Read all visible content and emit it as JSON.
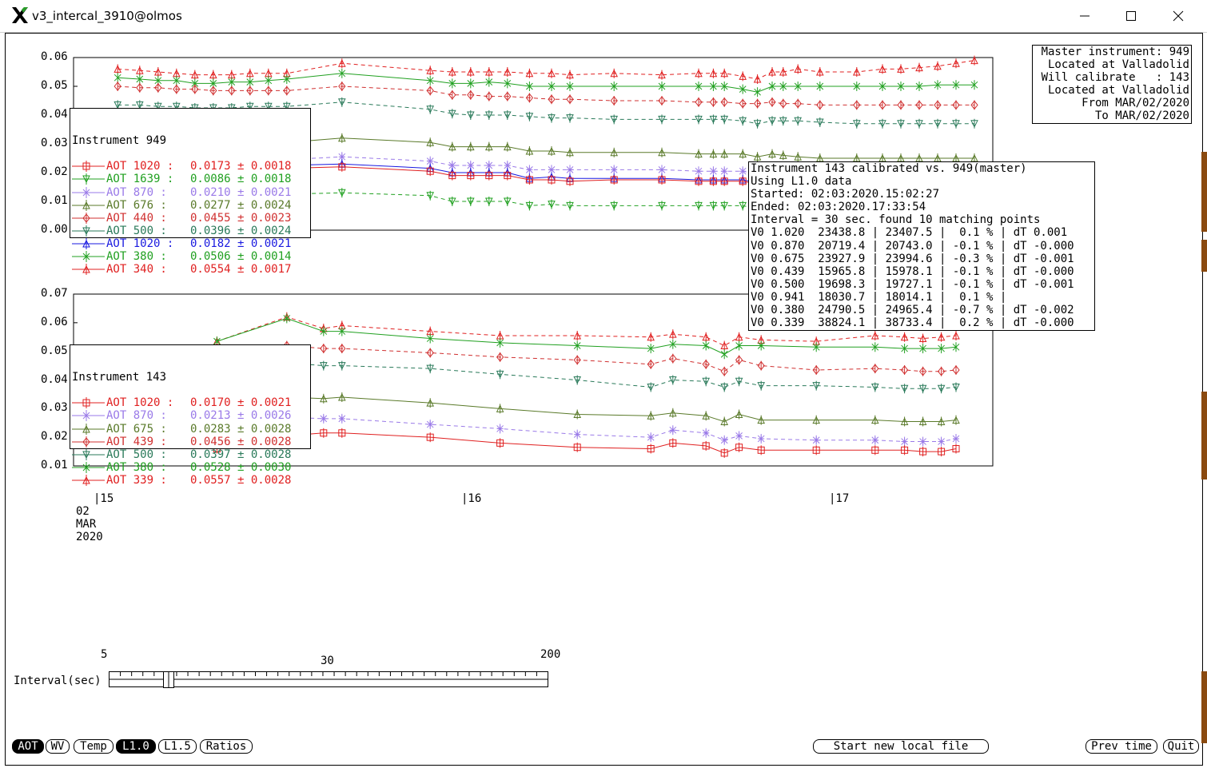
{
  "window": {
    "title": "v3_intercal_3910@olmos",
    "controls": [
      "minimize-icon",
      "maximize-icon",
      "close-icon"
    ]
  },
  "master_box": {
    "lines": [
      "Master instrument: 949",
      "Located at Valladolid",
      "Will calibrate   : 143",
      "Located at Valladolid",
      "From MAR/02/2020",
      "To MAR/02/2020"
    ]
  },
  "info_box": {
    "lines": [
      "Instrument 143 calibrated vs. 949(master)",
      "Using L1.0 data",
      "Started: 02:03:2020.15:02:27",
      "Ended: 02:03:2020.17:33:54",
      "Interval = 30 sec. found 10 matching points",
      "V0 1.020  23438.8 | 23407.5 |  0.1 % | dT 0.001",
      "V0 0.870  20719.4 | 20743.0 | -0.1 % | dT -0.000",
      "V0 0.675  23927.9 | 23994.6 | -0.3 % | dT -0.001",
      "V0 0.439  15965.8 | 15978.1 | -0.1 % | dT -0.000",
      "V0 0.500  19698.3 | 19727.1 | -0.1 % | dT -0.001",
      "V0 0.941  18030.7 | 18014.1 |  0.1 % |",
      "V0 0.380  24790.5 | 24965.4 | -0.7 % | dT -0.002",
      "V0 0.339  38824.1 | 38733.4 |  0.2 % | dT -0.000"
    ]
  },
  "legend_949": {
    "header": "Instrument 949",
    "rows": [
      {
        "name": "AOT 1020 :",
        "value": "0.0173 ± 0.0018",
        "color": "#e02020",
        "marker": "square"
      },
      {
        "name": "AOT 1639 :",
        "value": "0.0086 ± 0.0018",
        "color": "#20a020",
        "marker": "triangle-down"
      },
      {
        "name": "AOT 870 :",
        "value": "0.0210 ± 0.0021",
        "color": "#9a7ae8",
        "marker": "star"
      },
      {
        "name": "AOT 676 :",
        "value": "0.0277 ± 0.0024",
        "color": "#5a7a2a",
        "marker": "triangle"
      },
      {
        "name": "AOT 440 :",
        "value": "0.0455 ± 0.0023",
        "color": "#d03030",
        "marker": "diamond"
      },
      {
        "name": "AOT 500 :",
        "value": "0.0396 ± 0.0024",
        "color": "#2a7a5a",
        "marker": "triangle-down"
      },
      {
        "name": "AOT 1020 :",
        "value": "0.0182 ± 0.0021",
        "color": "#1a1ae0",
        "marker": "triangle"
      },
      {
        "name": "AOT 380 :",
        "value": "0.0506 ± 0.0014",
        "color": "#20a020",
        "marker": "x"
      },
      {
        "name": "AOT 340 :",
        "value": "0.0554 ± 0.0017",
        "color": "#e02020",
        "marker": "triangle"
      }
    ]
  },
  "legend_143": {
    "header": "Instrument 143",
    "rows": [
      {
        "name": "AOT 1020 :",
        "value": "0.0170 ± 0.0021",
        "color": "#e02020",
        "marker": "square"
      },
      {
        "name": "AOT 870 :",
        "value": "0.0213 ± 0.0026",
        "color": "#9a7ae8",
        "marker": "star"
      },
      {
        "name": "AOT 675 :",
        "value": "0.0283 ± 0.0028",
        "color": "#5a7a2a",
        "marker": "triangle"
      },
      {
        "name": "AOT 439 :",
        "value": "0.0456 ± 0.0028",
        "color": "#d03030",
        "marker": "diamond"
      },
      {
        "name": "AOT 500 :",
        "value": "0.0397 ± 0.0028",
        "color": "#2a7a5a",
        "marker": "triangle-down"
      },
      {
        "name": "AOT 380 :",
        "value": "0.0528 ± 0.0030",
        "color": "#20a020",
        "marker": "x"
      },
      {
        "name": "AOT 339 :",
        "value": "0.0557 ± 0.0028",
        "color": "#e02020",
        "marker": "triangle"
      }
    ]
  },
  "chart_data": [
    {
      "type": "line",
      "name": "Instrument 949 AOT",
      "ylim": [
        0.0,
        0.06
      ],
      "yticks": [
        "0.06",
        "0.05",
        "0.04",
        "0.03",
        "0.02",
        "0.01",
        "0.00"
      ],
      "xlim": [
        14.95,
        17.45
      ],
      "x": [
        15.07,
        15.13,
        15.18,
        15.23,
        15.28,
        15.33,
        15.38,
        15.43,
        15.48,
        15.53,
        15.68,
        15.92,
        15.98,
        16.03,
        16.08,
        16.13,
        16.19,
        16.25,
        16.3,
        16.42,
        16.55,
        16.65,
        16.69,
        16.72,
        16.77,
        16.81,
        16.85,
        16.88,
        16.92,
        16.98,
        17.08,
        17.15,
        17.2,
        17.25,
        17.3,
        17.35,
        17.4
      ],
      "series": [
        {
          "color": "#e02020",
          "dash": true,
          "values": [
            0.056,
            0.0555,
            0.055,
            0.0545,
            0.054,
            0.054,
            0.054,
            0.0545,
            0.0545,
            0.0545,
            0.058,
            0.0555,
            0.055,
            0.055,
            0.055,
            0.055,
            0.0545,
            0.0545,
            0.054,
            0.0545,
            0.054,
            0.0545,
            0.0545,
            0.0545,
            0.0535,
            0.0525,
            0.055,
            0.055,
            0.056,
            0.055,
            0.055,
            0.056,
            0.056,
            0.0565,
            0.057,
            0.058,
            0.059
          ]
        },
        {
          "color": "#20a020",
          "dash": false,
          "values": [
            0.053,
            0.0525,
            0.052,
            0.052,
            0.051,
            0.051,
            0.0515,
            0.0515,
            0.052,
            0.0525,
            0.0545,
            0.052,
            0.051,
            0.051,
            0.0515,
            0.051,
            0.05,
            0.05,
            0.05,
            0.05,
            0.05,
            0.05,
            0.05,
            0.05,
            0.049,
            0.048,
            0.05,
            0.05,
            0.05,
            0.05,
            0.05,
            0.05,
            0.05,
            0.05,
            0.0505,
            0.0505,
            0.0505
          ]
        },
        {
          "color": "#d03030",
          "dash": true,
          "values": [
            0.05,
            0.0495,
            0.0495,
            0.049,
            0.049,
            0.0485,
            0.0485,
            0.0485,
            0.0485,
            0.0485,
            0.05,
            0.0485,
            0.047,
            0.047,
            0.0465,
            0.0465,
            0.046,
            0.0455,
            0.0455,
            0.045,
            0.045,
            0.0445,
            0.0445,
            0.0445,
            0.044,
            0.044,
            0.0445,
            0.044,
            0.044,
            0.0435,
            0.0435,
            0.0435,
            0.0435,
            0.0435,
            0.0435,
            0.0435,
            0.0435
          ]
        },
        {
          "color": "#2a7a5a",
          "dash": true,
          "values": [
            0.0435,
            0.0435,
            0.043,
            0.043,
            0.0425,
            0.0425,
            0.0425,
            0.043,
            0.043,
            0.043,
            0.0445,
            0.042,
            0.0405,
            0.04,
            0.04,
            0.04,
            0.0395,
            0.039,
            0.039,
            0.0385,
            0.0385,
            0.0385,
            0.0385,
            0.0385,
            0.038,
            0.037,
            0.038,
            0.038,
            0.038,
            0.0375,
            0.037,
            0.037,
            0.037,
            0.037,
            0.037,
            0.037,
            0.037
          ]
        },
        {
          "color": "#5a7a2a",
          "dash": false,
          "values": [
            0.03,
            0.03,
            0.03,
            0.03,
            0.03,
            0.03,
            0.03,
            0.0305,
            0.0305,
            0.0305,
            0.032,
            0.0305,
            0.029,
            0.029,
            0.029,
            0.029,
            0.0275,
            0.0275,
            0.027,
            0.027,
            0.027,
            0.0265,
            0.0265,
            0.0265,
            0.0265,
            0.0255,
            0.0265,
            0.026,
            0.0255,
            0.025,
            0.025,
            0.025,
            0.025,
            0.025,
            0.025,
            0.025,
            0.025
          ]
        },
        {
          "color": "#9a7ae8",
          "dash": true,
          "values": [
            0.024,
            0.024,
            0.024,
            0.024,
            0.024,
            0.024,
            0.024,
            0.0245,
            0.0245,
            0.0245,
            0.0255,
            0.024,
            0.0225,
            0.0225,
            0.0225,
            0.0225,
            0.021,
            0.021,
            0.021,
            0.021,
            0.021,
            0.0205,
            0.0205,
            0.0205,
            0.0205,
            0.0195,
            0.021,
            0.0205,
            0.0205,
            0.02,
            0.02,
            0.02,
            0.02,
            0.02,
            0.02,
            0.02,
            0.02
          ]
        },
        {
          "color": "#1a1ae0",
          "dash": false,
          "values": [
            0.022,
            0.022,
            0.022,
            0.022,
            0.022,
            0.022,
            0.022,
            0.0225,
            0.0225,
            0.0225,
            0.023,
            0.0215,
            0.02,
            0.02,
            0.02,
            0.02,
            0.018,
            0.0185,
            0.018,
            0.018,
            0.018,
            0.0175,
            0.0175,
            0.0175,
            0.0175,
            0.0165,
            0.0175,
            0.017,
            0.017,
            0.0165,
            0.0165,
            0.0165,
            0.0165,
            0.0165,
            0.0165,
            0.0165,
            0.0165
          ]
        },
        {
          "color": "#e02020",
          "dash": false,
          "values": [
            0.021,
            0.021,
            0.021,
            0.021,
            0.021,
            0.021,
            0.021,
            0.0215,
            0.0215,
            0.0215,
            0.022,
            0.0205,
            0.019,
            0.019,
            0.019,
            0.019,
            0.0175,
            0.0175,
            0.017,
            0.0175,
            0.0175,
            0.017,
            0.017,
            0.017,
            0.017,
            0.016,
            0.017,
            0.0165,
            0.0165,
            0.0165,
            0.0165,
            0.0165,
            0.0165,
            0.0165,
            0.0165,
            0.0165,
            0.0165
          ]
        },
        {
          "color": "#20a020",
          "dash": true,
          "values": [
            0.0125,
            0.0125,
            0.0125,
            0.0125,
            0.0125,
            0.0125,
            0.0125,
            0.0125,
            0.0125,
            0.0125,
            0.013,
            0.012,
            0.01,
            0.01,
            0.01,
            0.01,
            0.0085,
            0.009,
            0.0085,
            0.0085,
            0.0085,
            0.0085,
            0.0085,
            0.0085,
            0.0085,
            0.0075,
            0.0085,
            0.008,
            0.008,
            0.008,
            0.008,
            0.008,
            0.008,
            0.008,
            0.008,
            0.008,
            0.008
          ]
        }
      ]
    },
    {
      "type": "line",
      "name": "Instrument 143 AOT",
      "ylim": [
        0.01,
        0.07
      ],
      "yticks": [
        "0.07",
        "0.06",
        "0.05",
        "0.04",
        "0.03",
        "0.02",
        "0.01"
      ],
      "xlim": [
        14.95,
        17.45
      ],
      "x": [
        15.34,
        15.53,
        15.63,
        15.68,
        15.92,
        16.11,
        16.32,
        16.52,
        16.58,
        16.67,
        16.72,
        16.76,
        16.82,
        16.97,
        17.13,
        17.21,
        17.26,
        17.31,
        17.35
      ],
      "series": [
        {
          "color": "#e02020",
          "dash": true,
          "values": [
            0.0535,
            0.062,
            0.058,
            0.059,
            0.057,
            0.0555,
            0.0555,
            0.055,
            0.056,
            0.055,
            0.052,
            0.055,
            0.054,
            0.0535,
            0.0555,
            0.055,
            0.0545,
            0.055,
            0.0555
          ]
        },
        {
          "color": "#20a020",
          "dash": false,
          "values": [
            0.0535,
            0.0615,
            0.057,
            0.057,
            0.0545,
            0.053,
            0.052,
            0.051,
            0.0525,
            0.052,
            0.049,
            0.052,
            0.052,
            0.0515,
            0.0515,
            0.051,
            0.051,
            0.051,
            0.0515
          ]
        },
        {
          "color": "#d03030",
          "dash": true,
          "values": [
            0.051,
            0.052,
            0.051,
            0.051,
            0.0495,
            0.048,
            0.047,
            0.0455,
            0.0475,
            0.0455,
            0.043,
            0.047,
            0.045,
            0.0435,
            0.044,
            0.0435,
            0.043,
            0.043,
            0.0435
          ]
        },
        {
          "color": "#2a7a5a",
          "dash": true,
          "values": [
            0.0455,
            0.046,
            0.045,
            0.045,
            0.044,
            0.042,
            0.04,
            0.0375,
            0.04,
            0.0395,
            0.0375,
            0.0395,
            0.038,
            0.038,
            0.0375,
            0.037,
            0.037,
            0.037,
            0.0375
          ]
        },
        {
          "color": "#5a7a2a",
          "dash": false,
          "values": [
            0.0315,
            0.034,
            0.0335,
            0.034,
            0.032,
            0.03,
            0.028,
            0.0275,
            0.0285,
            0.0275,
            0.0255,
            0.028,
            0.026,
            0.026,
            0.026,
            0.0255,
            0.0255,
            0.0255,
            0.026
          ]
        },
        {
          "color": "#9a7ae8",
          "dash": true,
          "values": [
            0.025,
            0.027,
            0.0265,
            0.0265,
            0.0245,
            0.023,
            0.021,
            0.02,
            0.0225,
            0.0215,
            0.019,
            0.0205,
            0.0195,
            0.019,
            0.019,
            0.0185,
            0.0185,
            0.0185,
            0.0195
          ]
        },
        {
          "color": "#e02020",
          "dash": false,
          "values": [
            0.016,
            0.0205,
            0.0215,
            0.0215,
            0.02,
            0.018,
            0.0165,
            0.016,
            0.018,
            0.017,
            0.0145,
            0.0165,
            0.0155,
            0.0155,
            0.0155,
            0.0155,
            0.015,
            0.015,
            0.016
          ]
        }
      ]
    }
  ],
  "time_axis": {
    "ticks": [
      "|15",
      "|16",
      "|17"
    ],
    "date_lines": [
      "02",
      "MAR",
      "2020"
    ]
  },
  "interval_slider": {
    "label": "Interval(sec)",
    "min_label": "5",
    "mid_label": "30",
    "max_label": "200",
    "value": 30
  },
  "buttons": {
    "left": [
      {
        "label": "AOT",
        "selected": true
      },
      {
        "label": "WV",
        "selected": false
      },
      {
        "label": "Temp",
        "selected": false
      },
      {
        "label": "L1.0",
        "selected": true
      },
      {
        "label": "L1.5",
        "selected": false
      },
      {
        "label": "Ratios",
        "selected": false
      }
    ],
    "start_new": "Start new local file",
    "prev_time": "Prev time",
    "quit": "Quit"
  }
}
